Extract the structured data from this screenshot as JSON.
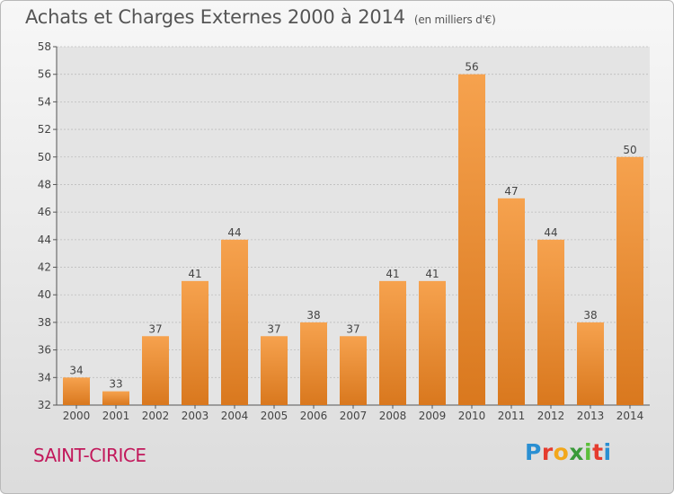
{
  "chart_data": {
    "type": "bar",
    "title": "Achats et Charges Externes 2000 à 2014",
    "subtitle": "(en milliers d'€)",
    "categories": [
      "2000",
      "2001",
      "2002",
      "2003",
      "2004",
      "2005",
      "2006",
      "2007",
      "2008",
      "2009",
      "2010",
      "2011",
      "2012",
      "2013",
      "2014"
    ],
    "values": [
      34,
      33,
      37,
      41,
      44,
      37,
      38,
      37,
      41,
      41,
      56,
      47,
      44,
      38,
      50
    ],
    "ylim": [
      32,
      58
    ],
    "yticks": [
      32,
      34,
      36,
      38,
      40,
      42,
      44,
      46,
      48,
      50,
      52,
      54,
      56,
      58
    ],
    "grid": true,
    "bar_color_light": "#f6a24e",
    "bar_color_dark": "#d9781e"
  },
  "commune_name": "SAINT-CIRICE",
  "logo": {
    "parts": [
      "P",
      "r",
      "o",
      "x",
      "i",
      "t",
      "i"
    ]
  }
}
